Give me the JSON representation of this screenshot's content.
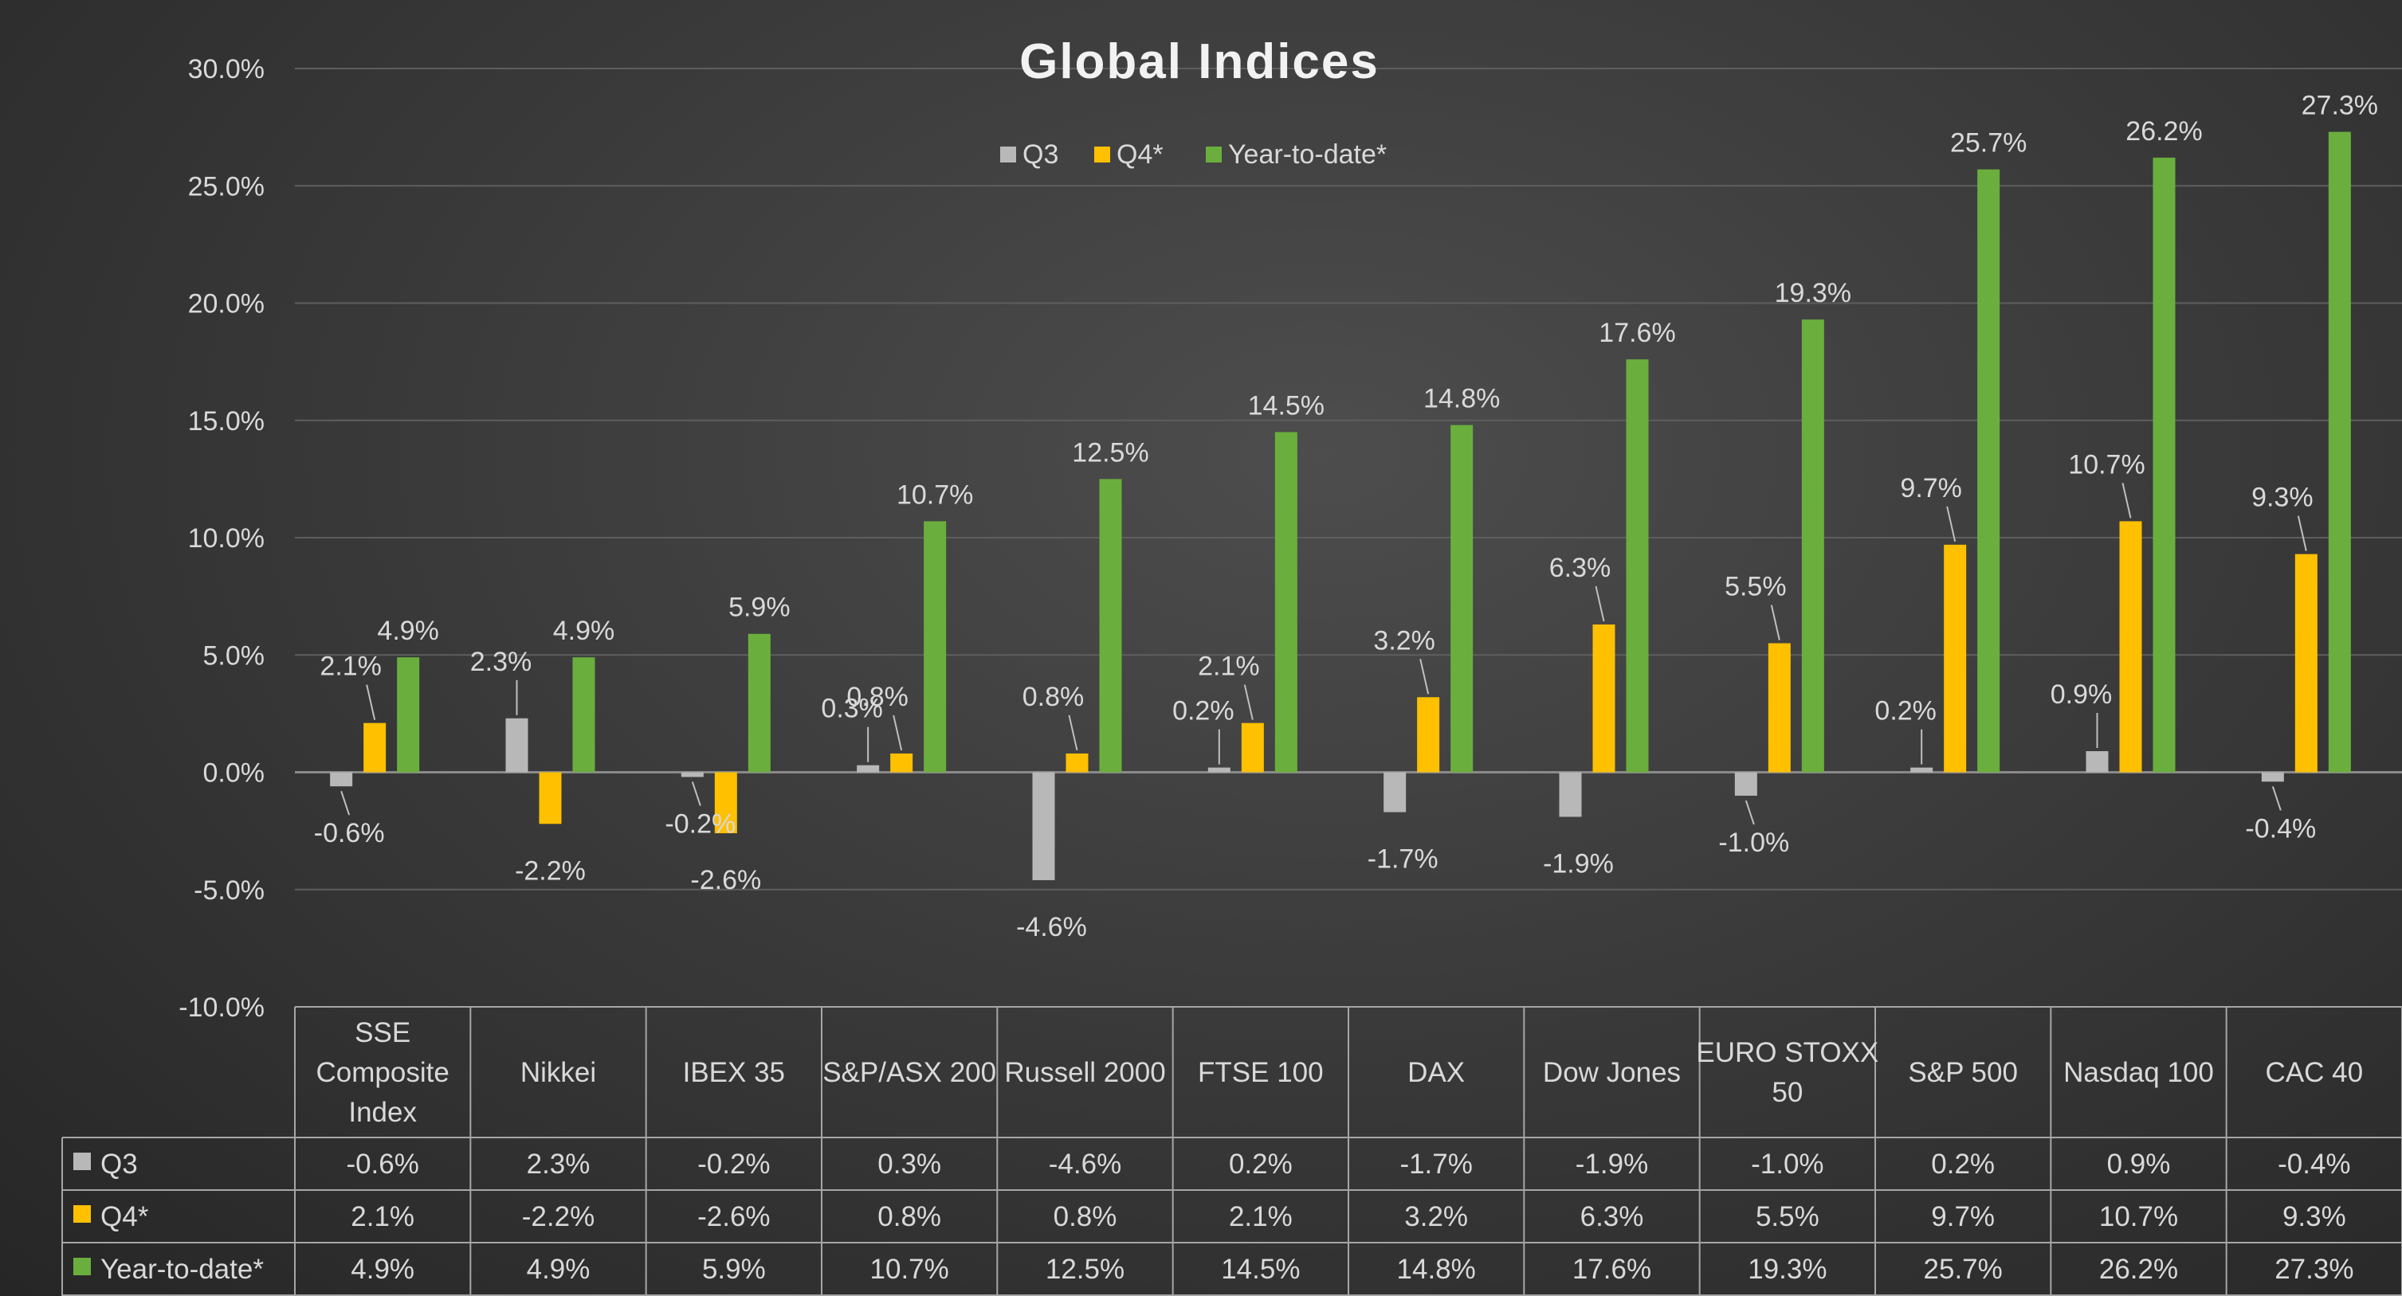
{
  "chart_data": {
    "type": "bar",
    "title": "Global Indices",
    "categories": [
      "SSE Composite Index",
      "Nikkei",
      "IBEX 35",
      "S&P/ASX 200",
      "Russell 2000",
      "FTSE 100",
      "DAX",
      "Dow Jones",
      "EURO STOXX 50",
      "S&P 500",
      "Nasdaq 100",
      "CAC 40"
    ],
    "series": [
      {
        "name": "Q3",
        "color": "#b8b8b8",
        "values": [
          -0.6,
          2.3,
          -0.2,
          0.3,
          -4.6,
          0.2,
          -1.7,
          -1.9,
          -1.0,
          0.2,
          0.9,
          -0.4
        ]
      },
      {
        "name": "Q4*",
        "color": "#ffc000",
        "values": [
          2.1,
          -2.2,
          -2.6,
          0.8,
          0.8,
          2.1,
          3.2,
          6.3,
          5.5,
          9.7,
          10.7,
          9.3
        ]
      },
      {
        "name": "Year-to-date*",
        "color": "#6aaf3d",
        "values": [
          4.9,
          4.9,
          5.9,
          10.7,
          12.5,
          14.5,
          14.8,
          17.6,
          19.3,
          25.7,
          26.2,
          27.3
        ]
      }
    ],
    "y_ticks": [
      "30.0%",
      "25.0%",
      "20.0%",
      "15.0%",
      "10.0%",
      "5.0%",
      "0.0%",
      "-5.0%",
      "-10.0%"
    ],
    "ylim": [
      -10,
      30
    ],
    "unit": "%",
    "grid": true,
    "legend_position": "top-center",
    "data_table": true
  }
}
